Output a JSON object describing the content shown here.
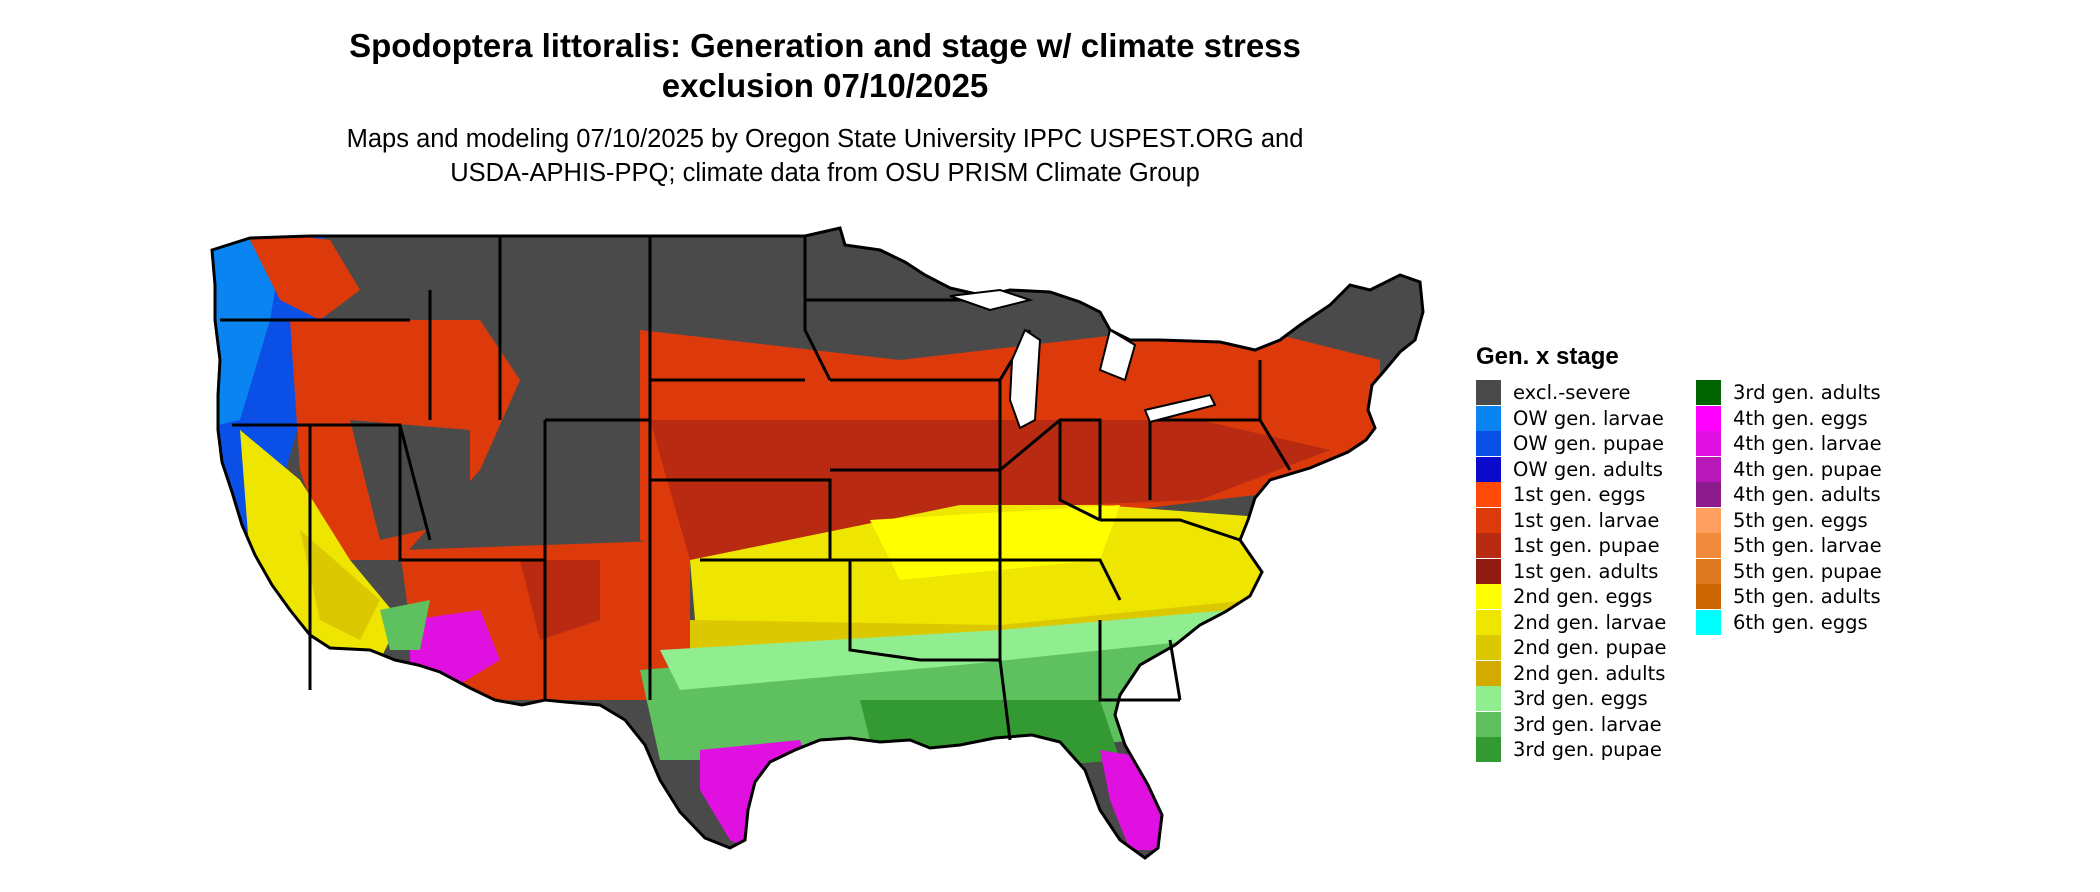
{
  "title": {
    "line1": "Spodoptera littoralis: Generation and stage w/ climate stress",
    "line2": "exclusion 07/10/2025"
  },
  "subtitle": {
    "line1": "Maps and modeling 07/10/2025 by Oregon State University IPPC USPEST.ORG and",
    "line2": "USDA-APHIS-PPQ; climate data from OSU PRISM Climate Group"
  },
  "legend": {
    "title": "Gen. x stage",
    "items": [
      {
        "label": "excl.-severe",
        "color": "#4a4a4a"
      },
      {
        "label": "OW gen. larvae",
        "color": "#0a84f0"
      },
      {
        "label": "OW gen. pupae",
        "color": "#0a50e6"
      },
      {
        "label": "OW gen. adults",
        "color": "#0a0acd"
      },
      {
        "label": "1st gen. eggs",
        "color": "#ff4a0a"
      },
      {
        "label": "1st gen. larvae",
        "color": "#dd3a0c"
      },
      {
        "label": "1st gen. pupae",
        "color": "#b82a12"
      },
      {
        "label": "1st gen. adults",
        "color": "#8f1a12"
      },
      {
        "label": "2nd gen. eggs",
        "color": "#ffff00"
      },
      {
        "label": "2nd gen. larvae",
        "color": "#eee500"
      },
      {
        "label": "2nd gen. pupae",
        "color": "#dcc800"
      },
      {
        "label": "2nd gen. adults",
        "color": "#d2aa00"
      },
      {
        "label": "3rd gen. eggs",
        "color": "#90ee90"
      },
      {
        "label": "3rd gen. larvae",
        "color": "#5ec05e"
      },
      {
        "label": "3rd gen. pupae",
        "color": "#339933"
      },
      {
        "label": "3rd gen. adults",
        "color": "#006400"
      },
      {
        "label": "4th gen. eggs",
        "color": "#ff00ff"
      },
      {
        "label": "4th gen. larvae",
        "color": "#e010e0"
      },
      {
        "label": "4th gen. pupae",
        "color": "#b818b8"
      },
      {
        "label": "4th gen. adults",
        "color": "#8b1a8b"
      },
      {
        "label": "5th gen. eggs",
        "color": "#ffa060"
      },
      {
        "label": "5th gen. larvae",
        "color": "#f08a3c"
      },
      {
        "label": "5th gen. pupae",
        "color": "#e07a20"
      },
      {
        "label": "5th gen. adults",
        "color": "#cc6600"
      },
      {
        "label": "6th gen. eggs",
        "color": "#00ffff"
      }
    ]
  }
}
